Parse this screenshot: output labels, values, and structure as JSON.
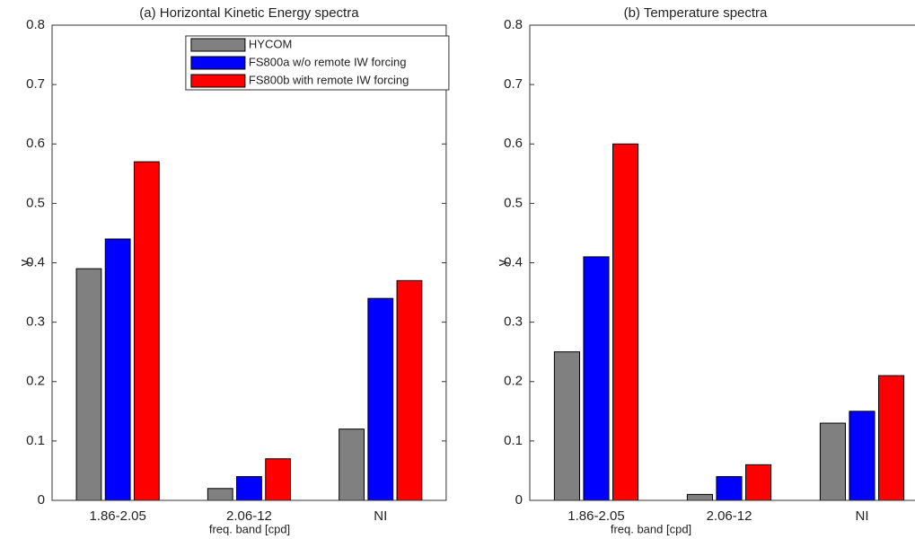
{
  "chart_data": [
    {
      "type": "bar",
      "title": "(a) Horizontal Kinetic Energy spectra",
      "x_label": "freq. band [cpd]",
      "y_label": "γ",
      "categories": [
        "1.86-2.05",
        "2.06-12",
        "NI"
      ],
      "series": [
        {
          "name": "HYCOM",
          "color": "#808080",
          "values": [
            0.39,
            0.02,
            0.12
          ]
        },
        {
          "name": "FS800a w/o remote IW forcing",
          "color": "#0000ff",
          "values": [
            0.44,
            0.04,
            0.34
          ]
        },
        {
          "name": "FS800b with remote IW forcing",
          "color": "#ff0000",
          "values": [
            0.57,
            0.07,
            0.37
          ]
        }
      ],
      "ylim": [
        0,
        0.8
      ],
      "yticks": [
        0,
        0.1,
        0.2,
        0.3,
        0.4,
        0.5,
        0.6,
        0.7,
        0.8
      ],
      "legend": "upper right"
    },
    {
      "type": "bar",
      "title": "(b) Temperature spectra",
      "x_label": "freq. band [cpd]",
      "y_label": "γ",
      "categories": [
        "1.86-2.05",
        "2.06-12",
        "NI"
      ],
      "series": [
        {
          "color": "#808080",
          "values": [
            0.25,
            0.01,
            0.13
          ]
        },
        {
          "color": "#0000ff",
          "values": [
            0.41,
            0.04,
            0.15
          ]
        },
        {
          "color": "#ff0000",
          "values": [
            0.6,
            0.06,
            0.21
          ]
        }
      ],
      "ylim": [
        0,
        0.8
      ],
      "yticks": [
        0,
        0.1,
        0.2,
        0.3,
        0.4,
        0.5,
        0.6,
        0.7,
        0.8
      ]
    }
  ]
}
